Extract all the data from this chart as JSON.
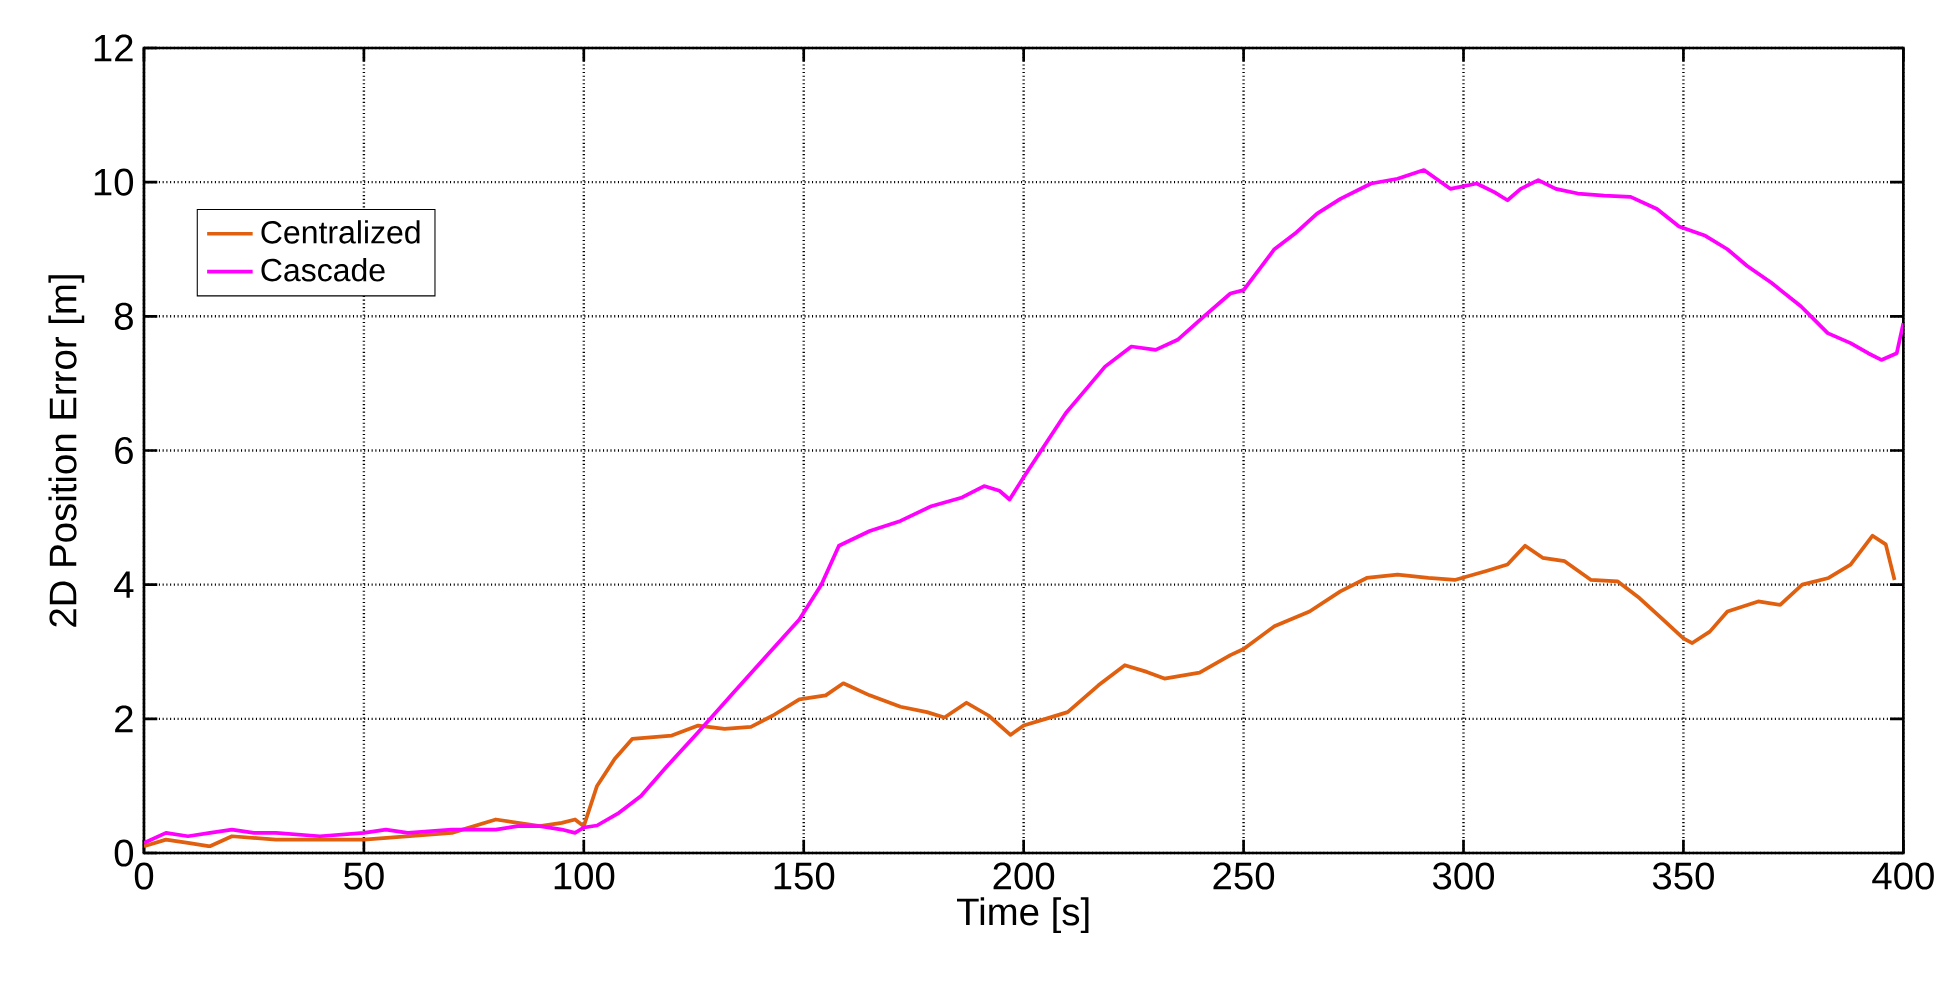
{
  "chart_data": {
    "type": "line",
    "xlabel": "Time [s]",
    "ylabel": "2D Position Error [m]",
    "xlim": [
      0,
      400
    ],
    "ylim": [
      0,
      12
    ],
    "xticks": [
      0,
      50,
      100,
      150,
      200,
      250,
      300,
      350,
      400
    ],
    "yticks": [
      0,
      2,
      4,
      6,
      8,
      10,
      12
    ],
    "grid": true,
    "legend": "top left",
    "marker": "none",
    "line_style": "solid",
    "series": [
      {
        "name": "Centralized",
        "color": "#e0600f",
        "x": [
          0,
          5,
          10,
          15,
          20,
          30,
          40,
          50,
          60,
          70,
          80,
          85,
          90,
          95,
          98,
          100,
          103,
          107,
          111,
          120,
          126,
          132,
          138,
          143,
          149,
          155,
          159,
          165,
          172,
          178,
          182,
          187,
          192,
          197,
          200,
          205,
          210,
          217,
          223,
          228,
          232,
          240,
          247,
          250,
          257,
          265,
          272,
          278,
          285,
          292,
          298,
          305,
          310,
          314,
          318,
          323,
          329,
          335,
          340,
          345,
          350,
          352,
          356,
          360,
          367,
          372,
          377,
          383,
          388,
          393,
          396,
          398
        ],
        "values": [
          0.1,
          0.2,
          0.15,
          0.1,
          0.25,
          0.2,
          0.2,
          0.2,
          0.25,
          0.3,
          0.5,
          0.45,
          0.4,
          0.45,
          0.5,
          0.4,
          1.0,
          1.4,
          1.7,
          1.75,
          1.9,
          1.85,
          1.88,
          2.05,
          2.29,
          2.35,
          2.53,
          2.35,
          2.18,
          2.1,
          2.02,
          2.24,
          2.05,
          1.76,
          1.9,
          2.0,
          2.1,
          2.5,
          2.8,
          2.7,
          2.6,
          2.69,
          2.95,
          3.04,
          3.38,
          3.6,
          3.9,
          4.1,
          4.15,
          4.1,
          4.07,
          4.2,
          4.3,
          4.58,
          4.4,
          4.35,
          4.07,
          4.05,
          3.8,
          3.5,
          3.2,
          3.13,
          3.3,
          3.6,
          3.75,
          3.7,
          4.0,
          4.1,
          4.3,
          4.73,
          4.6,
          4.07
        ]
      },
      {
        "name": "Cascade",
        "color": "#ff00ff",
        "x": [
          0,
          5,
          10,
          15,
          20,
          25,
          30,
          40,
          50,
          55,
          60,
          70,
          80,
          85,
          90,
          95,
          98,
          100,
          103,
          108,
          113,
          119,
          126,
          134,
          141,
          149,
          154,
          158,
          165,
          172,
          179,
          186,
          191,
          194.5,
          196.8,
          200,
          205,
          209.6,
          214,
          218.5,
          224.5,
          230,
          235,
          241,
          247,
          250,
          257,
          262,
          266.7,
          272,
          279,
          285,
          291,
          297,
          303,
          307,
          310,
          313,
          317,
          321,
          326,
          332,
          338,
          344,
          349,
          355,
          360,
          364.5,
          370,
          376.7,
          379,
          382.8,
          388,
          392,
          395,
          398.5,
          400
        ],
        "values": [
          0.15,
          0.3,
          0.25,
          0.3,
          0.35,
          0.3,
          0.3,
          0.25,
          0.3,
          0.35,
          0.3,
          0.35,
          0.35,
          0.4,
          0.4,
          0.35,
          0.3,
          0.38,
          0.41,
          0.6,
          0.85,
          1.3,
          1.8,
          2.39,
          2.9,
          3.48,
          4.0,
          4.58,
          4.8,
          4.95,
          5.17,
          5.3,
          5.47,
          5.4,
          5.27,
          5.6,
          6.1,
          6.56,
          6.9,
          7.25,
          7.55,
          7.5,
          7.65,
          8.0,
          8.34,
          8.39,
          9.0,
          9.25,
          9.53,
          9.75,
          9.98,
          10.05,
          10.18,
          9.9,
          9.98,
          9.85,
          9.73,
          9.9,
          10.03,
          9.9,
          9.83,
          9.8,
          9.78,
          9.6,
          9.34,
          9.2,
          9.0,
          8.75,
          8.5,
          8.15,
          8.0,
          7.75,
          7.6,
          7.45,
          7.35,
          7.45,
          7.9
        ]
      }
    ]
  }
}
